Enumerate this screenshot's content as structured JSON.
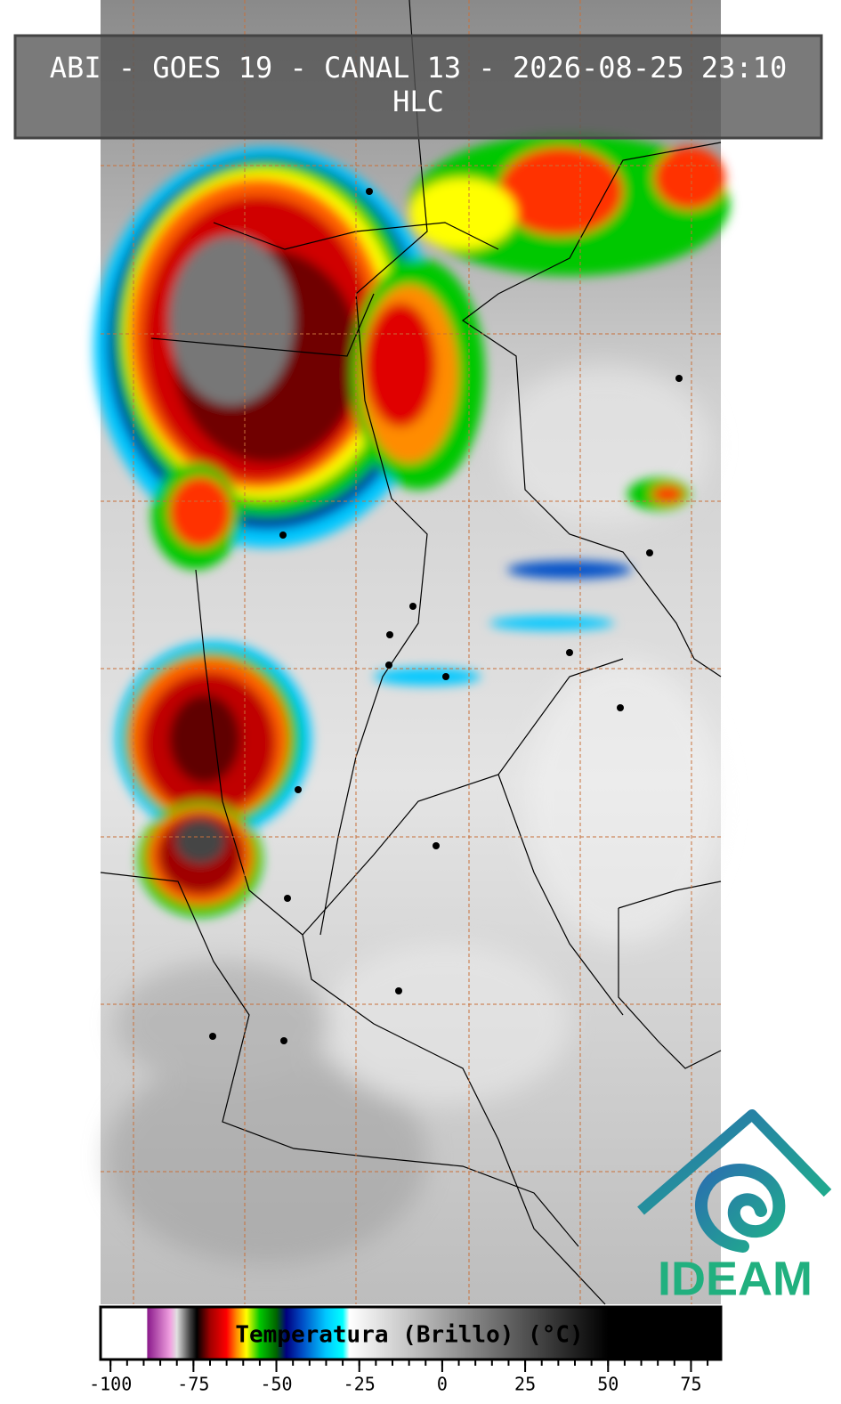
{
  "header": {
    "title": "ABI - GOES 19 - CANAL 13 - 2026-08-25 23:10",
    "subtitle": "HLC"
  },
  "colorbar": {
    "label": "Temperatura (Brillo) (°C)",
    "lim": [
      -103,
      84
    ],
    "ticks": [
      -100,
      -75,
      -50,
      -25,
      0,
      25,
      50,
      75
    ],
    "minor_step": 5,
    "stops": [
      {
        "value": -103,
        "color": "#ffffff"
      },
      {
        "value": -89,
        "color": "#ffffff"
      },
      {
        "value": -88.9,
        "color": "#8b1a8b"
      },
      {
        "value": -82,
        "color": "#f0a0e0"
      },
      {
        "value": -80,
        "color": "#e0e0e0"
      },
      {
        "value": -76,
        "color": "#404040"
      },
      {
        "value": -74,
        "color": "#000000"
      },
      {
        "value": -70,
        "color": "#a00000"
      },
      {
        "value": -65,
        "color": "#ff0000"
      },
      {
        "value": -62,
        "color": "#ff8c00"
      },
      {
        "value": -59,
        "color": "#ffff00"
      },
      {
        "value": -55,
        "color": "#00c800"
      },
      {
        "value": -50,
        "color": "#006400"
      },
      {
        "value": -47,
        "color": "#000080"
      },
      {
        "value": -42,
        "color": "#0050c8"
      },
      {
        "value": -35,
        "color": "#00c8ff"
      },
      {
        "value": -30,
        "color": "#00ffff"
      },
      {
        "value": -28,
        "color": "#ffffff"
      },
      {
        "value": 50,
        "color": "#000000"
      },
      {
        "value": 84,
        "color": "#000000"
      }
    ]
  },
  "logo": {
    "text": "IDEAM"
  }
}
